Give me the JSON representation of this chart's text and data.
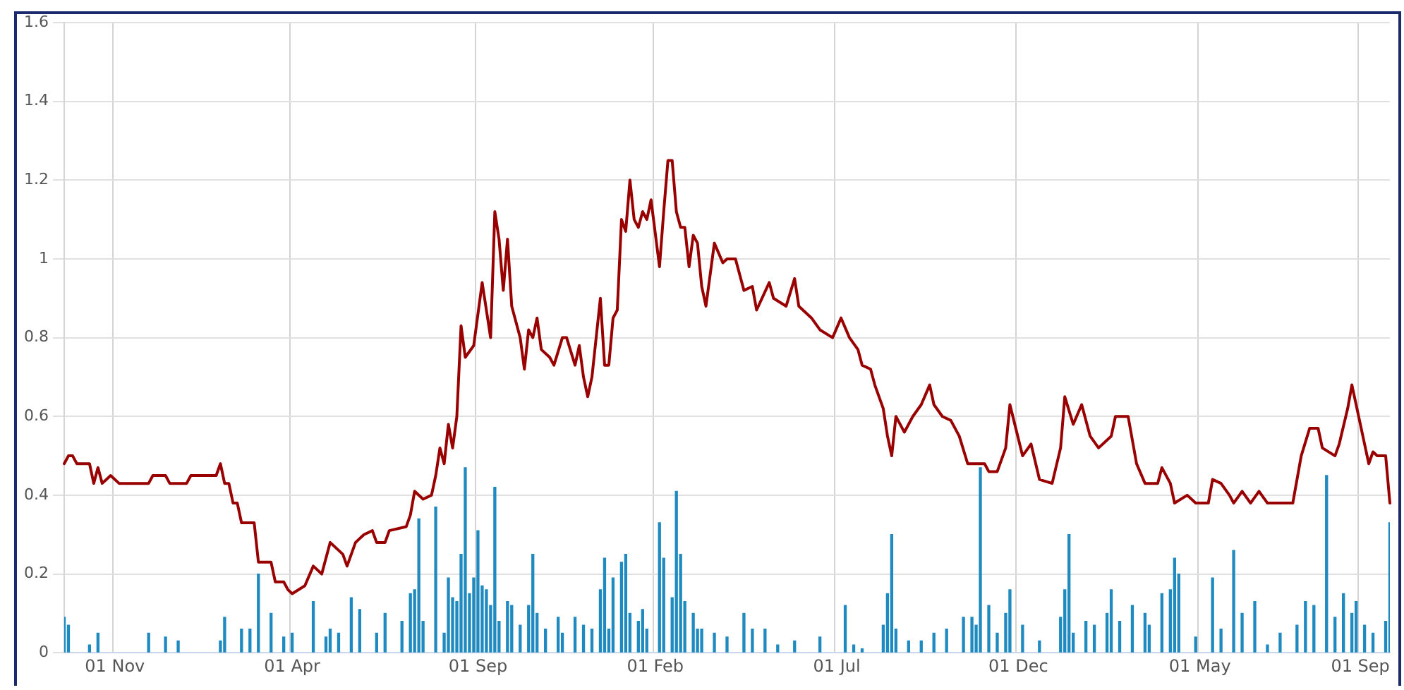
{
  "chart_data": {
    "type": "line",
    "categories": [
      null,
      null,
      null,
      null,
      null,
      null,
      null,
      null,
      null,
      null,
      null,
      null,
      "01 Nov",
      null,
      null,
      null,
      null,
      null,
      null,
      null,
      null,
      null,
      null,
      null,
      null,
      null,
      null,
      null,
      null,
      null,
      null,
      null,
      null,
      null,
      null,
      null,
      null,
      null,
      null,
      null,
      null,
      null,
      null,
      null,
      null,
      null,
      null,
      null,
      null,
      null,
      null,
      null,
      null,
      null,
      "01 Apr",
      null,
      null,
      null,
      null,
      null,
      null,
      null,
      null,
      null,
      null,
      null,
      null,
      null,
      null,
      null,
      null,
      null,
      null,
      null,
      null,
      null,
      null,
      null,
      null,
      null,
      null,
      null,
      null,
      null,
      null,
      null,
      null,
      null,
      null,
      null,
      null,
      null,
      null,
      null,
      null,
      null,
      null,
      null,
      "01 Sep",
      null,
      null,
      null,
      null,
      null,
      null,
      null,
      null,
      null,
      null,
      null,
      null,
      null,
      null,
      null,
      null,
      null,
      null,
      null,
      null,
      null,
      null,
      null,
      null,
      null,
      null,
      null,
      null,
      null,
      null,
      null,
      null,
      null,
      null,
      null,
      null,
      null,
      null,
      null,
      null,
      null,
      "01 Feb",
      null,
      null,
      null,
      null,
      null,
      null,
      null,
      null,
      null,
      null,
      null,
      null,
      null,
      null,
      null,
      null,
      null,
      null,
      null,
      null,
      null,
      null,
      null,
      null,
      null,
      null,
      null,
      null,
      null,
      null,
      null,
      null,
      null,
      null,
      null,
      null,
      null,
      null,
      null,
      null,
      null,
      null,
      "01 Jul",
      null,
      null,
      null,
      null,
      null,
      null,
      null,
      null,
      null,
      null,
      null,
      null,
      null,
      null,
      null,
      null,
      null,
      null,
      null,
      null,
      null,
      null,
      null,
      null,
      null,
      null,
      null,
      null,
      null,
      null,
      null,
      null,
      null,
      null,
      null,
      null,
      null,
      null,
      null,
      null,
      null,
      null,
      "01 Dec",
      null,
      null,
      null,
      null,
      null,
      null,
      null,
      null,
      null,
      null,
      null,
      null,
      null,
      null,
      null,
      null,
      null,
      null,
      null,
      null,
      null,
      null,
      null,
      null,
      null,
      null,
      null,
      null,
      null,
      null,
      null,
      null,
      null,
      null,
      null,
      null,
      null,
      null,
      null,
      null,
      null,
      null,
      "01 May",
      null,
      null,
      null,
      null,
      null,
      null,
      null,
      null,
      null,
      null,
      null,
      null,
      null,
      null,
      null,
      null,
      null,
      null,
      null,
      null,
      null,
      null,
      null,
      null,
      null,
      null,
      null,
      null,
      null,
      null,
      null,
      null,
      null,
      null,
      null,
      null,
      null,
      "01 Sep",
      null,
      null,
      null,
      null,
      null,
      null,
      null
    ],
    "ylim": [
      0,
      1.6
    ],
    "yticks": [
      0,
      0.2,
      0.4,
      0.6,
      0.8,
      1,
      1.2,
      1.4,
      1.6
    ],
    "grid": true,
    "legend": false,
    "marker": "none",
    "line_style": "solid",
    "series": [
      {
        "type": "bar",
        "color": "#1f8ac0",
        "values": [
          0.09,
          0.07,
          null,
          null,
          null,
          null,
          0.02,
          null,
          0.05,
          null,
          null,
          null,
          null,
          null,
          null,
          null,
          null,
          null,
          null,
          null,
          0.05,
          null,
          null,
          null,
          0.04,
          null,
          null,
          0.03,
          null,
          null,
          null,
          null,
          null,
          null,
          null,
          null,
          null,
          0.03,
          0.09,
          null,
          null,
          null,
          0.06,
          null,
          0.06,
          null,
          0.2,
          null,
          null,
          0.1,
          null,
          null,
          0.04,
          null,
          0.05,
          null,
          null,
          null,
          null,
          0.13,
          null,
          null,
          0.04,
          0.06,
          null,
          0.05,
          null,
          null,
          0.14,
          null,
          0.11,
          null,
          null,
          null,
          0.05,
          null,
          0.1,
          null,
          null,
          null,
          0.08,
          null,
          0.15,
          0.16,
          0.34,
          0.08,
          null,
          null,
          0.37,
          null,
          0.05,
          0.19,
          0.14,
          0.13,
          0.25,
          0.47,
          0.15,
          0.19,
          0.31,
          0.17,
          0.16,
          0.12,
          0.42,
          0.08,
          null,
          0.13,
          0.12,
          null,
          0.07,
          null,
          0.12,
          0.25,
          0.1,
          null,
          0.06,
          null,
          null,
          0.09,
          0.05,
          null,
          null,
          0.09,
          null,
          0.07,
          null,
          0.06,
          null,
          0.16,
          0.24,
          0.06,
          0.19,
          null,
          0.23,
          0.25,
          0.1,
          null,
          0.08,
          0.11,
          0.06,
          null,
          null,
          0.33,
          0.24,
          null,
          0.14,
          0.41,
          0.25,
          0.13,
          null,
          0.1,
          0.06,
          0.06,
          null,
          null,
          0.05,
          null,
          null,
          0.04,
          null,
          null,
          null,
          0.1,
          null,
          0.06,
          null,
          null,
          0.06,
          null,
          null,
          0.02,
          null,
          null,
          null,
          0.03,
          null,
          null,
          null,
          null,
          null,
          0.04,
          null,
          null,
          null,
          null,
          null,
          0.12,
          null,
          0.02,
          null,
          0.01,
          null,
          null,
          null,
          null,
          0.07,
          0.15,
          0.3,
          0.06,
          null,
          null,
          0.03,
          null,
          null,
          0.03,
          null,
          null,
          0.05,
          null,
          null,
          0.06,
          null,
          null,
          null,
          0.09,
          null,
          0.09,
          0.07,
          0.47,
          null,
          0.12,
          null,
          0.05,
          null,
          0.1,
          0.16,
          null,
          null,
          0.07,
          null,
          null,
          null,
          0.03,
          null,
          null,
          null,
          null,
          0.09,
          0.16,
          0.3,
          0.05,
          null,
          null,
          0.08,
          null,
          0.07,
          null,
          null,
          0.1,
          0.16,
          null,
          0.08,
          null,
          null,
          0.12,
          null,
          null,
          0.1,
          0.07,
          null,
          null,
          0.15,
          null,
          0.16,
          0.24,
          0.2,
          null,
          null,
          null,
          0.04,
          null,
          null,
          null,
          0.19,
          null,
          0.06,
          null,
          null,
          0.26,
          null,
          0.1,
          null,
          null,
          0.13,
          null,
          null,
          0.02,
          null,
          null,
          0.05,
          null,
          null,
          null,
          0.07,
          null,
          0.13,
          null,
          0.12,
          null,
          null,
          0.45,
          null,
          0.09,
          null,
          0.15,
          null,
          0.1,
          0.13,
          null,
          0.07,
          null,
          0.05,
          null,
          null,
          0.08,
          0.33
        ]
      },
      {
        "color": "#990000",
        "values": [
          0.48,
          0.5,
          0.5,
          0.48,
          null,
          null,
          0.48,
          0.43,
          0.47,
          0.43,
          null,
          0.45,
          null,
          0.43,
          null,
          null,
          null,
          null,
          null,
          null,
          0.43,
          0.45,
          null,
          null,
          0.45,
          0.43,
          null,
          null,
          null,
          0.43,
          0.45,
          null,
          null,
          null,
          null,
          null,
          0.45,
          0.48,
          0.43,
          0.43,
          0.38,
          0.38,
          0.33,
          null,
          null,
          0.33,
          0.23,
          null,
          null,
          0.23,
          0.18,
          null,
          0.18,
          0.16,
          0.15,
          null,
          null,
          0.17,
          null,
          0.22,
          null,
          0.2,
          null,
          0.28,
          null,
          null,
          0.25,
          0.22,
          null,
          0.28,
          null,
          0.3,
          null,
          0.31,
          0.28,
          null,
          0.28,
          0.31,
          null,
          null,
          null,
          0.32,
          0.35,
          0.41,
          null,
          0.39,
          null,
          0.4,
          0.45,
          0.52,
          0.48,
          0.58,
          0.52,
          0.6,
          0.83,
          0.75,
          null,
          0.78,
          null,
          0.94,
          null,
          0.8,
          1.12,
          1.05,
          0.92,
          1.05,
          0.88,
          null,
          0.8,
          0.72,
          0.82,
          0.8,
          0.85,
          0.77,
          null,
          0.75,
          0.73,
          null,
          0.8,
          0.8,
          null,
          0.73,
          0.78,
          0.7,
          0.65,
          0.7,
          null,
          0.9,
          0.73,
          0.73,
          0.85,
          0.87,
          1.1,
          1.07,
          1.2,
          1.1,
          1.08,
          1.12,
          1.1,
          1.15,
          null,
          0.98,
          1.12,
          1.25,
          1.25,
          1.12,
          1.08,
          1.08,
          0.98,
          1.06,
          1.04,
          0.93,
          0.88,
          null,
          1.04,
          null,
          0.99,
          1.0,
          null,
          1.0,
          null,
          0.92,
          null,
          0.93,
          0.87,
          null,
          null,
          0.94,
          0.9,
          null,
          null,
          0.88,
          null,
          0.95,
          0.88,
          null,
          null,
          0.85,
          null,
          0.82,
          null,
          null,
          0.8,
          null,
          0.85,
          null,
          0.8,
          null,
          0.77,
          0.73,
          null,
          0.72,
          0.68,
          null,
          0.62,
          0.55,
          0.5,
          0.6,
          0.58,
          0.56,
          null,
          0.6,
          null,
          0.63,
          null,
          0.68,
          0.63,
          null,
          0.6,
          null,
          0.59,
          null,
          0.55,
          null,
          0.48,
          null,
          null,
          null,
          0.48,
          0.46,
          null,
          0.46,
          null,
          0.52,
          0.63,
          null,
          null,
          0.5,
          null,
          0.53,
          null,
          0.44,
          null,
          null,
          0.43,
          null,
          0.52,
          0.65,
          null,
          0.58,
          null,
          0.63,
          null,
          0.55,
          null,
          0.52,
          null,
          null,
          0.55,
          0.6,
          null,
          null,
          0.6,
          null,
          0.48,
          null,
          0.43,
          null,
          null,
          0.43,
          0.47,
          null,
          0.43,
          0.38,
          null,
          null,
          0.4,
          null,
          0.38,
          null,
          null,
          0.38,
          0.44,
          null,
          0.43,
          null,
          0.4,
          0.38,
          null,
          0.41,
          null,
          0.38,
          null,
          0.41,
          null,
          0.38,
          null,
          null,
          null,
          null,
          null,
          0.38,
          null,
          0.5,
          null,
          0.57,
          null,
          0.57,
          0.52,
          null,
          null,
          0.5,
          0.53,
          null,
          0.62,
          0.68,
          null,
          0.58,
          0.53,
          0.48,
          0.51,
          0.5,
          null,
          0.5,
          0.38
        ]
      }
    ]
  }
}
